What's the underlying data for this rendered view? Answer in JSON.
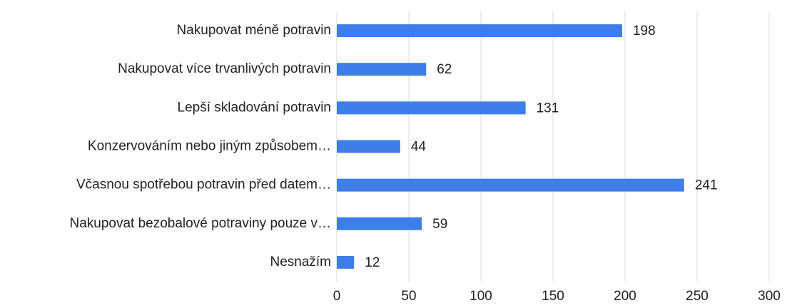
{
  "chart_data": {
    "type": "barh",
    "categories": [
      "Nakupovat méně potravin",
      "Nakupovat více trvanlivých potravin",
      "Lepší skladování potravin",
      "Konzervováním nebo jiným způsobem…",
      "Včasnou spotřebou potravin před datem…",
      "Nakupovat bezobalové potraviny pouze v…",
      "Nesnažím"
    ],
    "values": [
      198,
      62,
      131,
      44,
      241,
      59,
      12
    ],
    "color": "#3d7ee9",
    "xlim": [
      0,
      300
    ],
    "xticks": [
      0,
      50,
      100,
      150,
      200,
      250,
      300
    ],
    "grid": true
  }
}
